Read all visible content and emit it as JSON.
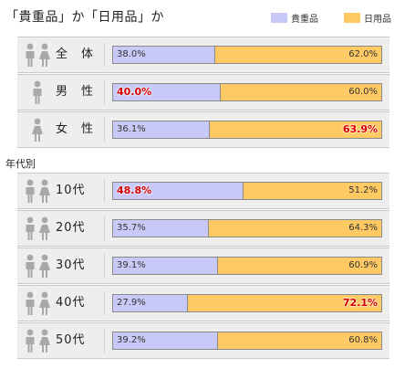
{
  "title": "「貴重品」か「日用品」か",
  "section_label": "年代別",
  "colors": {
    "kichouhin": "#c9c9f7",
    "nichiyouhin": "#ffc963",
    "highlight": "#d80000"
  },
  "chart_data": {
    "type": "bar",
    "stacked": true,
    "orientation": "horizontal",
    "legend_position": "top-right",
    "series": [
      {
        "name": "貴重品",
        "color": "#c9c9f7"
      },
      {
        "name": "日用品",
        "color": "#ffc963"
      }
    ],
    "rows": [
      {
        "label": "全　体",
        "icon": "both",
        "values": [
          38.0,
          62.0
        ],
        "labels": [
          "38.0%",
          "62.0%"
        ],
        "highlight": null
      },
      {
        "label": "男　性",
        "icon": "male",
        "values": [
          40.0,
          60.0
        ],
        "labels": [
          "40.0%",
          "60.0%"
        ],
        "highlight": 0
      },
      {
        "label": "女　性",
        "icon": "female",
        "values": [
          36.1,
          63.9
        ],
        "labels": [
          "36.1%",
          "63.9%"
        ],
        "highlight": 1
      },
      {
        "label": "10代",
        "icon": "both",
        "values": [
          48.8,
          51.2
        ],
        "labels": [
          "48.8%",
          "51.2%"
        ],
        "highlight": 0
      },
      {
        "label": "20代",
        "icon": "both",
        "values": [
          35.7,
          64.3
        ],
        "labels": [
          "35.7%",
          "64.3%"
        ],
        "highlight": null
      },
      {
        "label": "30代",
        "icon": "both",
        "values": [
          39.1,
          60.9
        ],
        "labels": [
          "39.1%",
          "60.9%"
        ],
        "highlight": null
      },
      {
        "label": "40代",
        "icon": "both",
        "values": [
          27.9,
          72.1
        ],
        "labels": [
          "27.9%",
          "72.1%"
        ],
        "highlight": 1
      },
      {
        "label": "50代",
        "icon": "both",
        "values": [
          39.2,
          60.8
        ],
        "labels": [
          "39.2%",
          "60.8%"
        ],
        "highlight": null
      }
    ]
  }
}
